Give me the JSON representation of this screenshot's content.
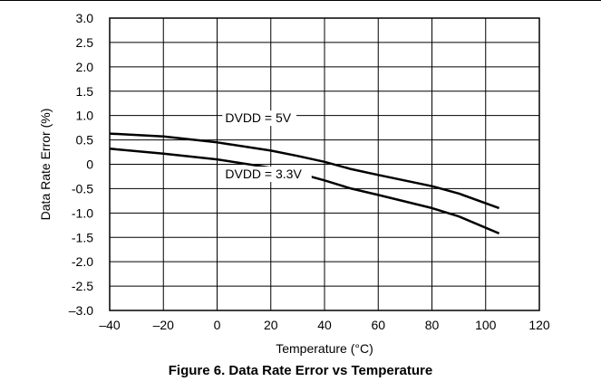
{
  "caption": "Figure 6. Data Rate Error vs Temperature",
  "chart_data": {
    "type": "line",
    "title": "",
    "xlabel": "Temperature (°C)",
    "ylabel": "Data Rate Error (%)",
    "xlim": [
      -40,
      120
    ],
    "ylim": [
      -3.0,
      3.0
    ],
    "x_ticks": [
      -40,
      -20,
      0,
      20,
      40,
      60,
      80,
      100,
      120
    ],
    "x_tick_labels": [
      "–40",
      "–20",
      "0",
      "20",
      "40",
      "60",
      "80",
      "100",
      "120"
    ],
    "y_ticks": [
      3.0,
      2.5,
      2.0,
      1.5,
      1.0,
      0.5,
      0,
      -0.5,
      -1.0,
      -1.5,
      -2.0,
      -2.5,
      -3.0
    ],
    "y_tick_labels": [
      "3.0",
      "2.5",
      "2.0",
      "1.5",
      "1.0",
      "0.5",
      "0",
      "-0.5",
      "-1.0",
      "-1.5",
      "-2.0",
      "-2.5",
      "–3.0"
    ],
    "grid": true,
    "line_color": "#000000",
    "series": [
      {
        "name": "DVDD = 5V",
        "x": [
          -40,
          -20,
          0,
          20,
          30,
          40,
          50,
          60,
          80,
          90,
          105
        ],
        "y": [
          0.63,
          0.57,
          0.45,
          0.28,
          0.17,
          0.05,
          -0.1,
          -0.22,
          -0.45,
          -0.6,
          -0.9
        ]
      },
      {
        "name": "DVDD = 3.3V",
        "x": [
          -40,
          -20,
          0,
          20,
          30,
          40,
          50,
          60,
          80,
          90,
          105
        ],
        "y": [
          0.32,
          0.22,
          0.1,
          -0.07,
          -0.18,
          -0.33,
          -0.5,
          -0.63,
          -0.9,
          -1.07,
          -1.42
        ]
      }
    ],
    "annotations": [
      {
        "text": "DVDD = 5V",
        "x": 3,
        "y": 0.88
      },
      {
        "text": "DVDD = 3.3V",
        "x": 3,
        "y": -0.27
      }
    ]
  }
}
